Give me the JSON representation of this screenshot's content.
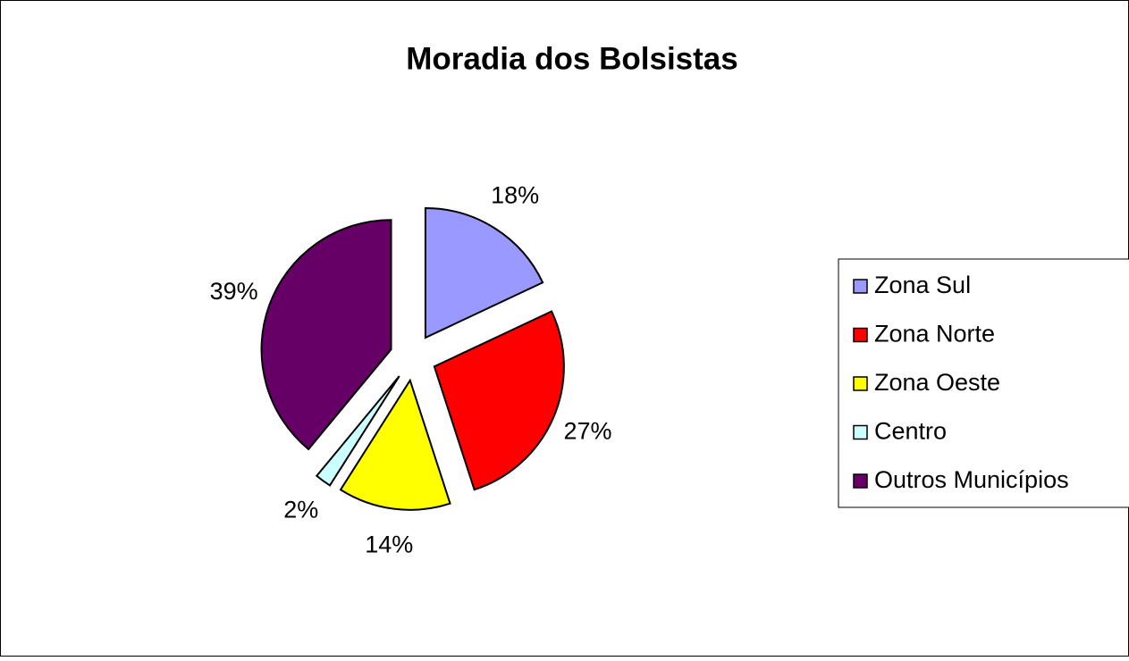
{
  "chart_data": {
    "type": "pie",
    "title": "Moradia dos Bolsistas",
    "categories": [
      "Zona Sul",
      "Zona Norte",
      "Zona Oeste",
      "Centro",
      "Outros Municípios"
    ],
    "values": [
      18,
      27,
      14,
      2,
      39
    ],
    "value_labels": [
      "18%",
      "27%",
      "14%",
      "2%",
      "39%"
    ],
    "colors": [
      "#9999ff",
      "#ff0000",
      "#ffff00",
      "#ccffff",
      "#660066"
    ],
    "exploded": true,
    "legend": "right"
  }
}
